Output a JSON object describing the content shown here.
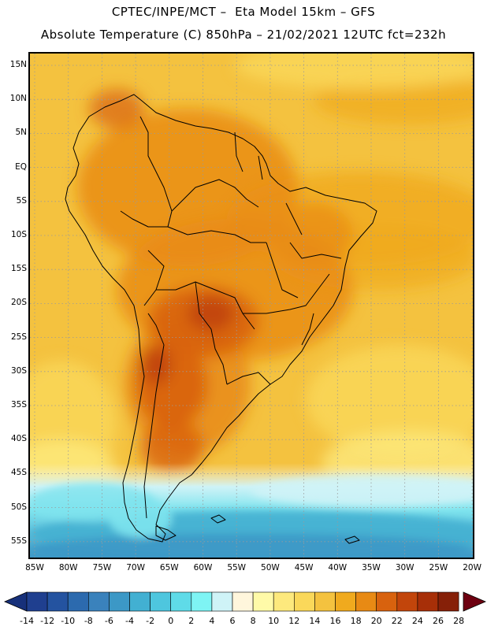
{
  "header": {
    "line1": "CPTEC/INPE/MCT –  Eta Model 15km – GFS",
    "line2": "Absolute Temperature (C) 850hPa – 21/02/2021 12UTC fct=232h"
  },
  "axes": {
    "lat_labels": [
      "15N",
      "10N",
      "5N",
      "EQ",
      "5S",
      "10S",
      "15S",
      "20S",
      "25S",
      "30S",
      "35S",
      "40S",
      "45S",
      "50S",
      "55S"
    ],
    "lon_labels": [
      "85W",
      "80W",
      "75W",
      "70W",
      "65W",
      "60W",
      "55W",
      "50W",
      "45W",
      "40W",
      "35W",
      "30W",
      "25W",
      "20W"
    ]
  },
  "colorbar": {
    "labels": [
      "-14",
      "-12",
      "-10",
      "-8",
      "-6",
      "-4",
      "-2",
      "0",
      "2",
      "4",
      "6",
      "8",
      "10",
      "12",
      "14",
      "16",
      "18",
      "20",
      "22",
      "24",
      "26",
      "28"
    ],
    "colors": [
      "#1f3f8f",
      "#2453a0",
      "#2c6aae",
      "#3a82bc",
      "#3c98c6",
      "#42b0d2",
      "#4ec6de",
      "#5fdbe8",
      "#7ef4f4",
      "#cff3f7",
      "#fff6dc",
      "#fffaa8",
      "#fde97d",
      "#fad85a",
      "#f4c23f",
      "#f0aa1e",
      "#e88a14",
      "#d8620e",
      "#c2450b",
      "#a72f08",
      "#862008"
    ],
    "under_color": "#17307a",
    "over_color": "#6e0010"
  }
}
